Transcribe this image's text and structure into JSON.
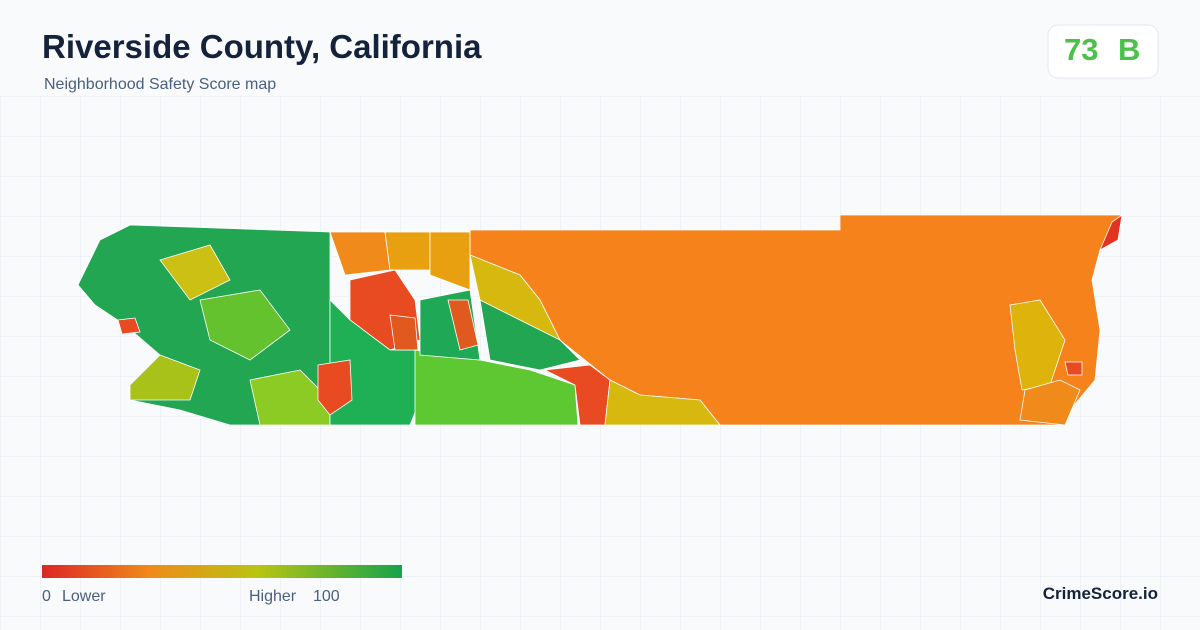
{
  "header": {
    "title": "Riverside County, California",
    "subtitle": "Neighborhood Safety Score map"
  },
  "score": {
    "value": 73,
    "grade": "B"
  },
  "legend": {
    "min": 0,
    "min_label": "Lower",
    "max_label": "Higher",
    "max": 100
  },
  "brand": "CrimeScore.io"
}
